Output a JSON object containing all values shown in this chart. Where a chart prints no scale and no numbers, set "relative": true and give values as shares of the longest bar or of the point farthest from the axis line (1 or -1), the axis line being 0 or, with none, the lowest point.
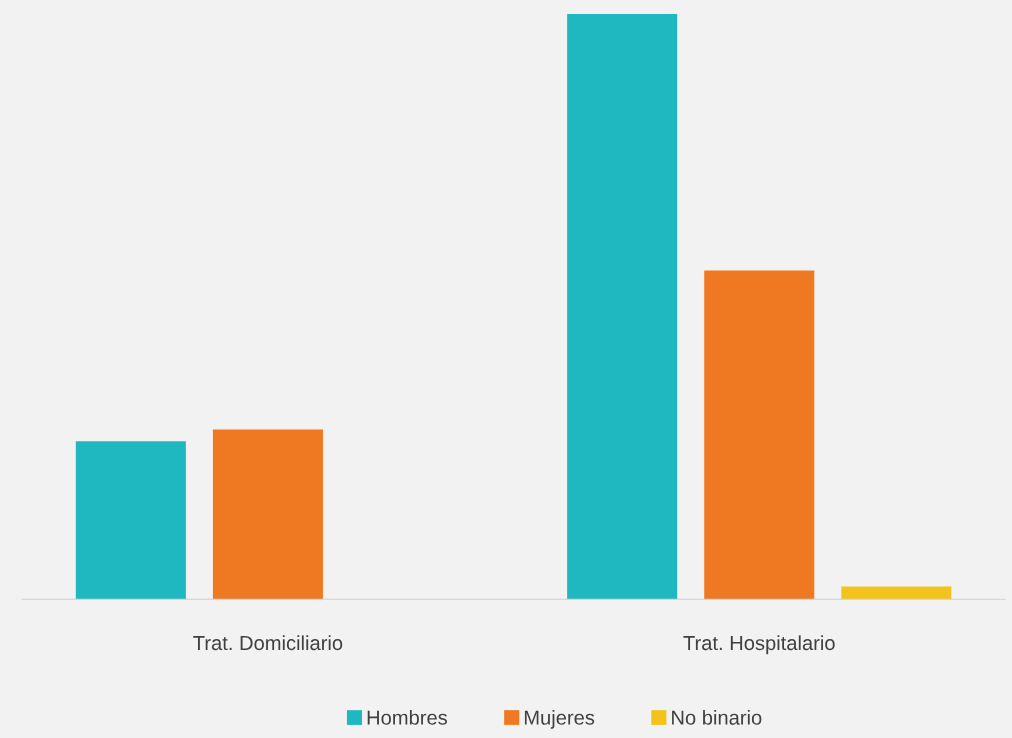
{
  "chart_data": {
    "type": "bar",
    "relative": true,
    "categories": [
      "Trat. Domiciliario",
      "Trat. Hospitalario"
    ],
    "series": [
      {
        "name": "Hombres",
        "color": "#1fb8c1",
        "values": [
          0.27,
          1
        ]
      },
      {
        "name": "Mujeres",
        "color": "#ef7922",
        "values": [
          0.29,
          0.562
        ]
      },
      {
        "name": "No binario",
        "color": "#f2c31b",
        "values": [
          null,
          0.022
        ]
      }
    ],
    "legend": "bottom",
    "grid": false
  }
}
